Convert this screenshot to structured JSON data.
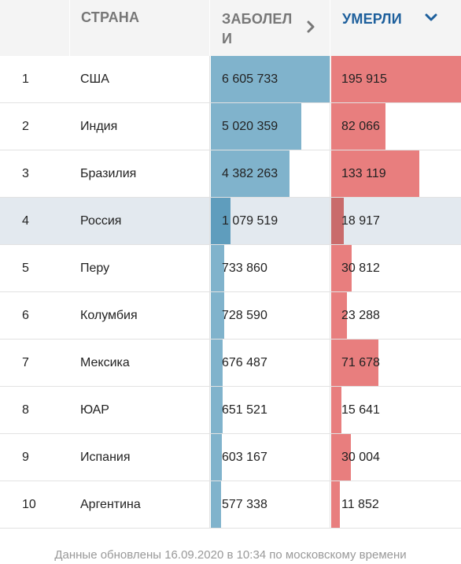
{
  "header": {
    "country_label": "СТРАНА",
    "cases_label": "ЗАБОЛЕЛИ",
    "deaths_label": "УМЕРЛИ"
  },
  "colors": {
    "cases_bar": "#80b3cc",
    "deaths_bar": "#e87e7e",
    "active_sort": "#1d5f9c",
    "highlight_row": "#e3e9ef"
  },
  "icons": {
    "cases_sort": "chevron-right-icon",
    "deaths_sort": "chevron-down-icon"
  },
  "rows": [
    {
      "rank": "1",
      "country": "США",
      "cases": "6 605 733",
      "deaths": "195 915",
      "cases_num": 6605733,
      "deaths_num": 195915,
      "highlight": false
    },
    {
      "rank": "2",
      "country": "Индия",
      "cases": "5 020 359",
      "deaths": "82 066",
      "cases_num": 5020359,
      "deaths_num": 82066,
      "highlight": false
    },
    {
      "rank": "3",
      "country": "Бразилия",
      "cases": "4 382 263",
      "deaths": "133 119",
      "cases_num": 4382263,
      "deaths_num": 133119,
      "highlight": false
    },
    {
      "rank": "4",
      "country": "Россия",
      "cases": "1 079 519",
      "deaths": "18 917",
      "cases_num": 1079519,
      "deaths_num": 18917,
      "highlight": true
    },
    {
      "rank": "5",
      "country": "Перу",
      "cases": "733 860",
      "deaths": "30 812",
      "cases_num": 733860,
      "deaths_num": 30812,
      "highlight": false
    },
    {
      "rank": "6",
      "country": "Колумбия",
      "cases": "728 590",
      "deaths": "23 288",
      "cases_num": 728590,
      "deaths_num": 23288,
      "highlight": false
    },
    {
      "rank": "7",
      "country": "Мексика",
      "cases": "676 487",
      "deaths": "71 678",
      "cases_num": 676487,
      "deaths_num": 71678,
      "highlight": false
    },
    {
      "rank": "8",
      "country": "ЮАР",
      "cases": "651 521",
      "deaths": "15 641",
      "cases_num": 651521,
      "deaths_num": 15641,
      "highlight": false
    },
    {
      "rank": "9",
      "country": "Испания",
      "cases": "603 167",
      "deaths": "30 004",
      "cases_num": 603167,
      "deaths_num": 30004,
      "highlight": false
    },
    {
      "rank": "10",
      "country": "Аргентина",
      "cases": "577 338",
      "deaths": "11 852",
      "cases_num": 577338,
      "deaths_num": 11852,
      "highlight": false
    }
  ],
  "footer": {
    "text": "Данные обновлены 16.09.2020 в 10:34 по московскому времени"
  }
}
